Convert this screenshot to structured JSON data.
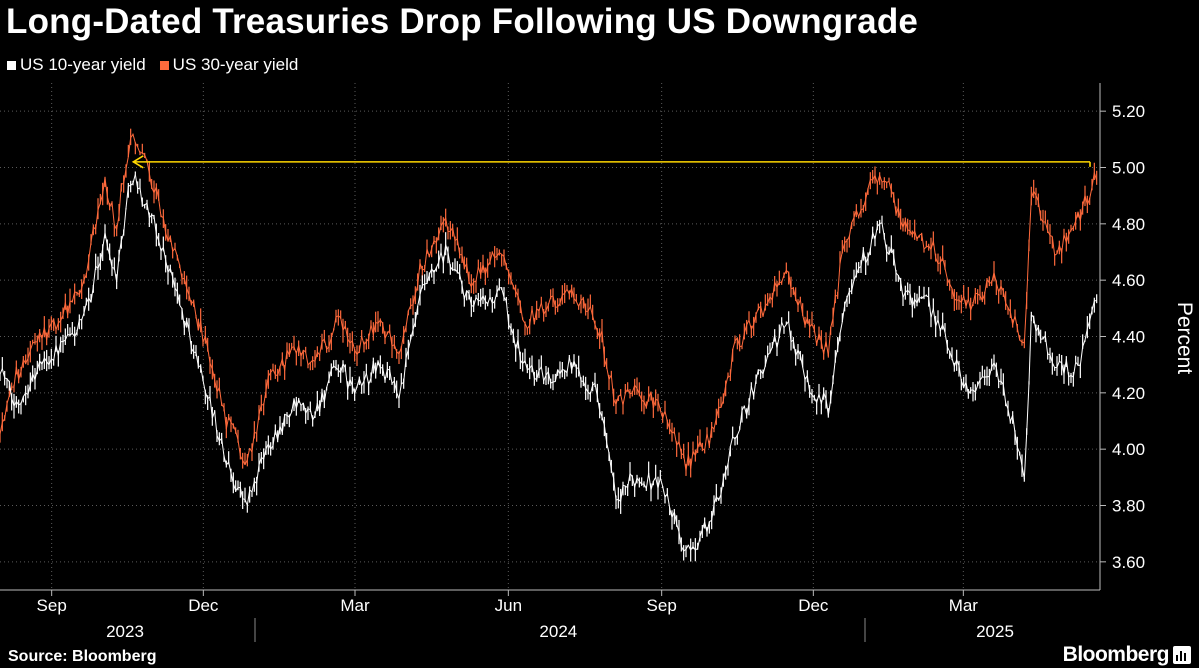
{
  "title": "Long-Dated Treasuries Drop Following US Downgrade",
  "source": "Source: Bloomberg",
  "brand": "Bloomberg",
  "colors": {
    "series_10y": "#ffffff",
    "series_30y": "#ff6a3c",
    "reference_line": "#ffd700",
    "grid": "#5a5a5a",
    "background": "#000000"
  },
  "chart_data": {
    "type": "line",
    "title": "Long-Dated Treasuries Drop Following US Downgrade",
    "ylabel": "Percent",
    "ylim": [
      3.5,
      5.3
    ],
    "xlim": [
      "2023-08-01",
      "2025-05-22"
    ],
    "y_ticks": [
      "5.20",
      "5.00",
      "4.80",
      "4.60",
      "4.40",
      "4.20",
      "4.00",
      "3.80",
      "3.60"
    ],
    "x_ticks": [
      {
        "date": "2023-09-01",
        "label": "Sep"
      },
      {
        "date": "2023-12-01",
        "label": "Dec"
      },
      {
        "date": "2024-03-01",
        "label": "Mar"
      },
      {
        "date": "2024-06-01",
        "label": "Jun"
      },
      {
        "date": "2024-09-01",
        "label": "Sep"
      },
      {
        "date": "2024-12-01",
        "label": "Dec"
      },
      {
        "date": "2025-03-01",
        "label": "Mar"
      }
    ],
    "year_labels": [
      {
        "label": "2023",
        "center": "2023-10-15"
      },
      {
        "label": "2024",
        "center": "2024-07-01"
      },
      {
        "label": "2025",
        "center": "2025-03-20"
      }
    ],
    "year_separators": [
      "2024-01-01",
      "2025-01-01"
    ],
    "grid": true,
    "legend_position": "top-left",
    "reference_line": {
      "y": 5.02,
      "from": "2023-10-20",
      "to": "2025-05-22",
      "style": "arrow-left"
    },
    "series": [
      {
        "name": "US 10-year yield",
        "points": [
          [
            "2023-08-01",
            4.3
          ],
          [
            "2023-08-10",
            4.15
          ],
          [
            "2023-08-25",
            4.3
          ],
          [
            "2023-09-05",
            4.35
          ],
          [
            "2023-09-20",
            4.45
          ],
          [
            "2023-10-03",
            4.75
          ],
          [
            "2023-10-10",
            4.62
          ],
          [
            "2023-10-19",
            4.99
          ],
          [
            "2023-10-25",
            4.9
          ],
          [
            "2023-11-01",
            4.8
          ],
          [
            "2023-11-10",
            4.65
          ],
          [
            "2023-11-20",
            4.45
          ],
          [
            "2023-12-01",
            4.25
          ],
          [
            "2023-12-15",
            3.95
          ],
          [
            "2023-12-27",
            3.8
          ],
          [
            "2024-01-10",
            4.03
          ],
          [
            "2024-01-25",
            4.15
          ],
          [
            "2024-02-05",
            4.12
          ],
          [
            "2024-02-20",
            4.3
          ],
          [
            "2024-03-01",
            4.2
          ],
          [
            "2024-03-15",
            4.3
          ],
          [
            "2024-03-28",
            4.2
          ],
          [
            "2024-04-10",
            4.55
          ],
          [
            "2024-04-25",
            4.7
          ],
          [
            "2024-05-10",
            4.5
          ],
          [
            "2024-05-28",
            4.55
          ],
          [
            "2024-06-10",
            4.3
          ],
          [
            "2024-06-25",
            4.25
          ],
          [
            "2024-07-08",
            4.3
          ],
          [
            "2024-07-25",
            4.2
          ],
          [
            "2024-08-05",
            3.8
          ],
          [
            "2024-08-15",
            3.9
          ],
          [
            "2024-09-01",
            3.88
          ],
          [
            "2024-09-16",
            3.62
          ],
          [
            "2024-10-01",
            3.75
          ],
          [
            "2024-10-15",
            4.05
          ],
          [
            "2024-11-01",
            4.3
          ],
          [
            "2024-11-15",
            4.45
          ],
          [
            "2024-12-01",
            4.2
          ],
          [
            "2024-12-10",
            4.15
          ],
          [
            "2024-12-20",
            4.55
          ],
          [
            "2025-01-10",
            4.79
          ],
          [
            "2025-01-25",
            4.55
          ],
          [
            "2025-02-10",
            4.5
          ],
          [
            "2025-02-25",
            4.3
          ],
          [
            "2025-03-05",
            4.2
          ],
          [
            "2025-03-20",
            4.3
          ],
          [
            "2025-04-04",
            4.0
          ],
          [
            "2025-04-07",
            3.9
          ],
          [
            "2025-04-11",
            4.48
          ],
          [
            "2025-04-25",
            4.3
          ],
          [
            "2025-05-08",
            4.28
          ],
          [
            "2025-05-21",
            4.55
          ]
        ]
      },
      {
        "name": "US 30-year yield",
        "points": [
          [
            "2023-08-01",
            4.05
          ],
          [
            "2023-08-10",
            4.25
          ],
          [
            "2023-08-25",
            4.4
          ],
          [
            "2023-09-05",
            4.45
          ],
          [
            "2023-09-20",
            4.6
          ],
          [
            "2023-10-03",
            4.95
          ],
          [
            "2023-10-10",
            4.8
          ],
          [
            "2023-10-19",
            5.15
          ],
          [
            "2023-10-25",
            5.05
          ],
          [
            "2023-11-01",
            4.95
          ],
          [
            "2023-11-10",
            4.75
          ],
          [
            "2023-11-20",
            4.6
          ],
          [
            "2023-12-01",
            4.4
          ],
          [
            "2023-12-15",
            4.1
          ],
          [
            "2023-12-27",
            3.95
          ],
          [
            "2024-01-10",
            4.25
          ],
          [
            "2024-01-25",
            4.35
          ],
          [
            "2024-02-05",
            4.3
          ],
          [
            "2024-02-20",
            4.45
          ],
          [
            "2024-03-01",
            4.35
          ],
          [
            "2024-03-15",
            4.45
          ],
          [
            "2024-03-28",
            4.35
          ],
          [
            "2024-04-10",
            4.65
          ],
          [
            "2024-04-25",
            4.8
          ],
          [
            "2024-05-10",
            4.6
          ],
          [
            "2024-05-28",
            4.7
          ],
          [
            "2024-06-10",
            4.45
          ],
          [
            "2024-06-25",
            4.5
          ],
          [
            "2024-07-08",
            4.55
          ],
          [
            "2024-07-25",
            4.45
          ],
          [
            "2024-08-05",
            4.15
          ],
          [
            "2024-08-15",
            4.2
          ],
          [
            "2024-09-01",
            4.15
          ],
          [
            "2024-09-16",
            3.95
          ],
          [
            "2024-10-01",
            4.05
          ],
          [
            "2024-10-15",
            4.35
          ],
          [
            "2024-11-01",
            4.5
          ],
          [
            "2024-11-15",
            4.62
          ],
          [
            "2024-12-01",
            4.4
          ],
          [
            "2024-12-10",
            4.35
          ],
          [
            "2024-12-20",
            4.75
          ],
          [
            "2025-01-10",
            4.99
          ],
          [
            "2025-01-25",
            4.8
          ],
          [
            "2025-02-10",
            4.72
          ],
          [
            "2025-02-25",
            4.55
          ],
          [
            "2025-03-05",
            4.5
          ],
          [
            "2025-03-20",
            4.6
          ],
          [
            "2025-04-04",
            4.4
          ],
          [
            "2025-04-07",
            4.38
          ],
          [
            "2025-04-11",
            4.95
          ],
          [
            "2025-04-25",
            4.7
          ],
          [
            "2025-05-08",
            4.8
          ],
          [
            "2025-05-21",
            5.0
          ]
        ]
      }
    ]
  }
}
